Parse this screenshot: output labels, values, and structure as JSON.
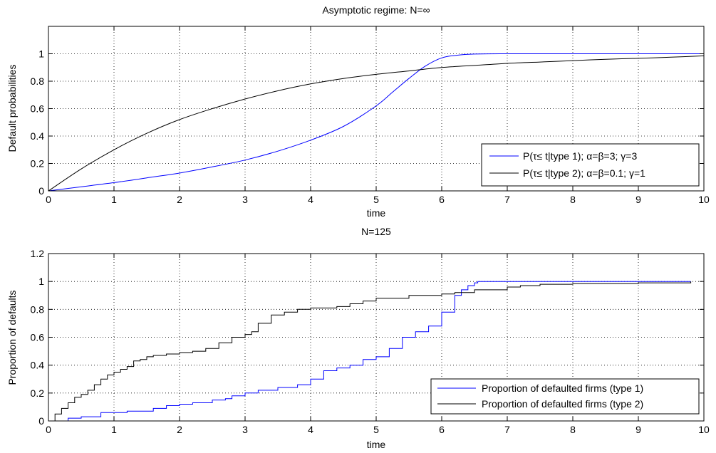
{
  "chart_data": [
    {
      "type": "line",
      "title": "Asymptotic regime: N=∞",
      "xlabel": "time",
      "ylabel": "Default probabilities",
      "xlim": [
        0,
        10
      ],
      "ylim": [
        0,
        1.2
      ],
      "xticks": [
        "0",
        "1",
        "2",
        "3",
        "4",
        "5",
        "6",
        "7",
        "8",
        "9",
        "10"
      ],
      "yticks": [
        "0",
        "0.2",
        "0.4",
        "0.6",
        "0.8",
        "1"
      ],
      "grid": true,
      "legend_position": "bottom-right",
      "series": [
        {
          "name": "P(τ≤ t|type 1); α=β=3; γ=3",
          "color": "#0000ff",
          "x": [
            0,
            0.5,
            1,
            1.5,
            2,
            2.5,
            3,
            3.5,
            4,
            4.5,
            5,
            5.25,
            5.5,
            5.75,
            6,
            6.25,
            6.5,
            7,
            8,
            9,
            10
          ],
          "y": [
            0,
            0.03,
            0.06,
            0.095,
            0.13,
            0.175,
            0.225,
            0.29,
            0.37,
            0.47,
            0.62,
            0.72,
            0.82,
            0.91,
            0.97,
            0.99,
            0.998,
            1,
            1,
            1,
            1
          ]
        },
        {
          "name": "P(τ≤ t|type 2); α=β=0.1; γ=1",
          "color": "#000000",
          "x": [
            0,
            0.5,
            1,
            1.5,
            2,
            2.5,
            3,
            3.5,
            4,
            4.5,
            5,
            5.5,
            6,
            6.5,
            7,
            7.5,
            8,
            8.5,
            9,
            9.5,
            10
          ],
          "y": [
            0,
            0.16,
            0.3,
            0.42,
            0.52,
            0.6,
            0.67,
            0.73,
            0.78,
            0.82,
            0.85,
            0.875,
            0.9,
            0.915,
            0.93,
            0.94,
            0.95,
            0.96,
            0.967,
            0.975,
            0.985
          ]
        }
      ]
    },
    {
      "type": "line",
      "title": "N=125",
      "xlabel": "time",
      "ylabel": "Proportion of defaults",
      "xlim": [
        0,
        10
      ],
      "ylim": [
        0,
        1.2
      ],
      "xticks": [
        "0",
        "1",
        "2",
        "3",
        "4",
        "5",
        "6",
        "7",
        "8",
        "9",
        "10"
      ],
      "yticks": [
        "0",
        "0.2",
        "0.4",
        "0.6",
        "0.8",
        "1",
        "1.2"
      ],
      "grid": true,
      "legend_position": "bottom-right",
      "series": [
        {
          "name": "Proportion of defaulted firms (type 1)",
          "color": "#0000ff",
          "step": true,
          "x": [
            0,
            0.3,
            0.5,
            0.8,
            1.2,
            1.6,
            1.8,
            2.0,
            2.2,
            2.5,
            2.7,
            2.8,
            3.0,
            3.2,
            3.5,
            3.8,
            4.0,
            4.2,
            4.4,
            4.6,
            4.8,
            5.0,
            5.2,
            5.4,
            5.6,
            5.8,
            6.0,
            6.2,
            6.3,
            6.4,
            6.5,
            6.55,
            7,
            8,
            9,
            9.8
          ],
          "y": [
            0,
            0.02,
            0.03,
            0.06,
            0.07,
            0.09,
            0.11,
            0.12,
            0.13,
            0.15,
            0.16,
            0.18,
            0.2,
            0.22,
            0.24,
            0.26,
            0.3,
            0.36,
            0.38,
            0.4,
            0.44,
            0.46,
            0.52,
            0.6,
            0.64,
            0.68,
            0.78,
            0.9,
            0.94,
            0.97,
            0.99,
            1,
            1,
            1,
            1,
            1
          ]
        },
        {
          "name": "Proportion of defaulted firms (type 2)",
          "color": "#000000",
          "step": true,
          "x": [
            0,
            0.1,
            0.2,
            0.3,
            0.4,
            0.5,
            0.6,
            0.7,
            0.8,
            0.9,
            1.0,
            1.1,
            1.2,
            1.3,
            1.4,
            1.5,
            1.6,
            1.8,
            2.0,
            2.2,
            2.4,
            2.6,
            2.8,
            3.0,
            3.1,
            3.2,
            3.4,
            3.6,
            3.8,
            4.0,
            4.2,
            4.4,
            4.6,
            4.8,
            5.0,
            5.5,
            6.0,
            6.2,
            6.5,
            7.0,
            7.2,
            7.5,
            8.0,
            9.0,
            9.8
          ],
          "y": [
            0,
            0.05,
            0.09,
            0.13,
            0.17,
            0.19,
            0.22,
            0.26,
            0.3,
            0.33,
            0.35,
            0.37,
            0.39,
            0.43,
            0.44,
            0.46,
            0.47,
            0.48,
            0.49,
            0.5,
            0.52,
            0.56,
            0.6,
            0.62,
            0.64,
            0.7,
            0.76,
            0.78,
            0.8,
            0.81,
            0.81,
            0.82,
            0.84,
            0.86,
            0.88,
            0.9,
            0.91,
            0.92,
            0.94,
            0.96,
            0.97,
            0.98,
            0.985,
            0.99,
            1
          ]
        }
      ]
    }
  ]
}
